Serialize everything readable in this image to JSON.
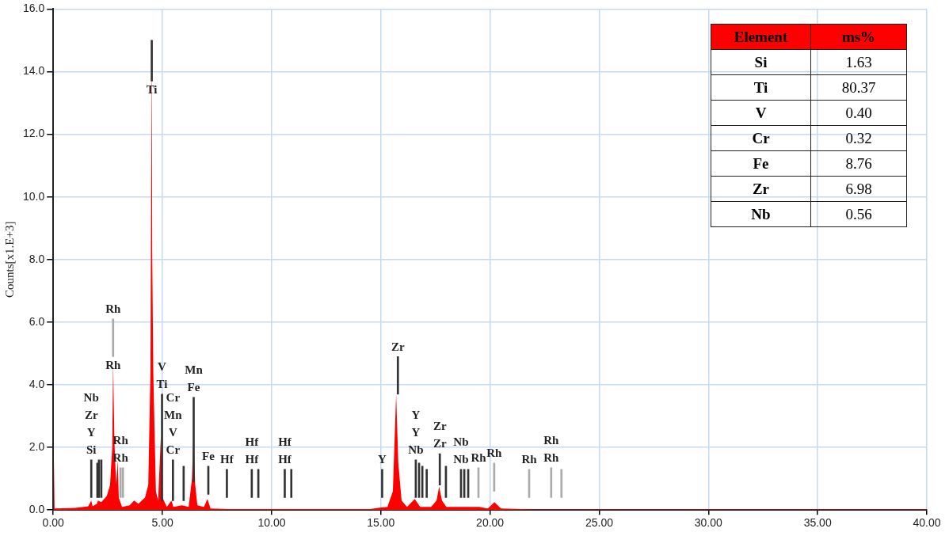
{
  "chart_data": [
    {
      "type": "area",
      "ylabel": "Counts[x1.E+3]",
      "xlim": [
        0,
        40
      ],
      "ylim": [
        0,
        16
      ],
      "xticks": [
        {
          "value": 0,
          "label": "0.00"
        },
        {
          "value": 5,
          "label": "5.00"
        },
        {
          "value": 10,
          "label": "10.00"
        },
        {
          "value": 15,
          "label": "15.00"
        },
        {
          "value": 20,
          "label": "20.00"
        },
        {
          "value": 25,
          "label": "25.00"
        },
        {
          "value": 30,
          "label": "30.00"
        },
        {
          "value": 35,
          "label": "35.00"
        },
        {
          "value": 40,
          "label": "40.00"
        }
      ],
      "yticks": [
        {
          "value": 0,
          "label": "0.0"
        },
        {
          "value": 2,
          "label": "2.0"
        },
        {
          "value": 4,
          "label": "4.0"
        },
        {
          "value": 6,
          "label": "6.0"
        },
        {
          "value": 8,
          "label": "8.0"
        },
        {
          "value": 10,
          "label": "10.0"
        },
        {
          "value": 12,
          "label": "12.0"
        },
        {
          "value": 14,
          "label": "14.0"
        },
        {
          "value": 16,
          "label": "16.0"
        }
      ],
      "grid": true,
      "legend": false,
      "series": [
        {
          "type": "area",
          "color": "#ff0000",
          "x": [
            0,
            0.02,
            0.06,
            1.0,
            1.6,
            1.74,
            1.8,
            2.0,
            2.05,
            2.2,
            2.45,
            2.6,
            2.7,
            2.74,
            2.8,
            2.88,
            2.95,
            3.0,
            3.15,
            3.5,
            3.7,
            3.9,
            4.2,
            4.35,
            4.45,
            4.51,
            4.53,
            4.58,
            4.7,
            4.8,
            4.93,
            5.0,
            5.2,
            5.41,
            5.5,
            5.9,
            6.2,
            6.35,
            6.42,
            6.5,
            6.6,
            6.9,
            7.06,
            7.2,
            8.0,
            14.5,
            15.0,
            15.3,
            15.55,
            15.7,
            15.8,
            15.95,
            16.2,
            16.55,
            16.8,
            17.3,
            17.55,
            17.67,
            17.8,
            18.0,
            19.5,
            19.9,
            20.2,
            20.5,
            22,
            40
          ],
          "values": [
            0,
            2.0,
            0.05,
            0.07,
            0.12,
            0.3,
            0.12,
            0.2,
            0.3,
            0.25,
            0.45,
            0.8,
            2.0,
            4.7,
            2.2,
            0.8,
            1.6,
            0.4,
            0.1,
            0.15,
            0.3,
            0.2,
            0.4,
            0.8,
            4.4,
            15.0,
            8.3,
            4.4,
            0.6,
            0.3,
            2.4,
            0.4,
            0.1,
            0.3,
            0.1,
            0.15,
            0.1,
            1.0,
            2.35,
            0.8,
            0.15,
            0.1,
            0.35,
            0.05,
            0.03,
            0.03,
            0.08,
            0.1,
            0.6,
            3.7,
            1.5,
            0.3,
            0.1,
            0.35,
            0.1,
            0.1,
            0.3,
            0.75,
            0.3,
            0.1,
            0.1,
            0.05,
            0.25,
            0.05,
            0.02,
            0.02
          ]
        },
        {
          "type": "bar",
          "x": [
            1.74,
            2.02,
            2.09,
            2.2,
            2.74,
            3.08,
            3.19,
            4.51,
            4.98,
            5.48,
            5.97,
            6.43,
            7.1,
            7.95,
            9.09,
            9.39,
            10.6,
            10.9,
            15.06,
            15.78,
            16.6,
            16.75,
            16.9,
            17.1,
            17.7,
            17.98,
            18.67,
            18.82,
            19.0,
            19.47,
            20.19,
            21.79,
            22.8,
            23.27
          ],
          "base": [
            0.4,
            0.4,
            0.4,
            0.4,
            4.9,
            0.4,
            0.4,
            13.7,
            0.3,
            0.3,
            0.3,
            0.9,
            0.5,
            0.4,
            0.4,
            0.4,
            0.4,
            0.4,
            0.4,
            3.7,
            0.4,
            0.4,
            0.4,
            0.4,
            0.8,
            0.4,
            0.4,
            0.4,
            0.4,
            0.4,
            0.6,
            0.4,
            0.4,
            0.4
          ],
          "values": [
            1.2,
            1.1,
            1.2,
            1.2,
            1.2,
            0.95,
            0.95,
            1.3,
            3.4,
            1.3,
            1.1,
            2.7,
            0.9,
            0.9,
            0.9,
            0.9,
            0.9,
            0.9,
            0.9,
            1.2,
            1.2,
            1.1,
            1.0,
            0.9,
            1.0,
            1.0,
            0.9,
            0.9,
            0.9,
            0.95,
            0.9,
            0.9,
            0.95,
            0.9
          ],
          "colors": [
            "#333333",
            "#333333",
            "#333333",
            "#333333",
            "#aaaaaa",
            "#aaaaaa",
            "#aaaaaa",
            "#333333",
            "#333333",
            "#333333",
            "#333333",
            "#333333",
            "#333333",
            "#333333",
            "#333333",
            "#333333",
            "#333333",
            "#333333",
            "#333333",
            "#333333",
            "#333333",
            "#333333",
            "#333333",
            "#333333",
            "#333333",
            "#333333",
            "#333333",
            "#333333",
            "#333333",
            "#aaaaaa",
            "#aaaaaa",
            "#aaaaaa",
            "#aaaaaa",
            "#aaaaaa"
          ]
        }
      ],
      "annotations": [
        {
          "text": "Ti",
          "x": 4.51,
          "y": 13.7
        },
        {
          "text": "Rh",
          "x": 2.74,
          "y": 6.1
        },
        {
          "text": "Rh",
          "x": 2.74,
          "y": 4.9
        },
        {
          "text": "Si",
          "x": 1.74,
          "y": 1.6
        },
        {
          "text": "Y",
          "x": 1.74,
          "y": 1.6
        },
        "Zr",
        "Nb",
        {
          "text": "Rh",
          "x": 3.08,
          "y": 1.35
        },
        {
          "text": "Rh",
          "x": 3.08,
          "y": 1.35
        },
        {
          "text": "Ti",
          "x": 4.98,
          "y": 3.7
        },
        {
          "text": "V",
          "x": 4.98,
          "y": 3.7
        },
        {
          "text": "Cr",
          "x": 5.48,
          "y": 1.6
        },
        {
          "text": "V",
          "x": 5.48,
          "y": 1.6
        },
        "Mn",
        "Cr",
        {
          "text": "Fe",
          "x": 6.43,
          "y": 3.6
        },
        {
          "text": "Mn",
          "x": 6.43,
          "y": 3.6
        },
        {
          "text": "Fe",
          "x": 7.1,
          "y": 1.4
        },
        {
          "text": "Hf",
          "x": 7.95,
          "y": 1.3
        },
        {
          "text": "Hf",
          "x": 9.09,
          "y": 1.3
        },
        {
          "text": "Hf",
          "x": 9.09,
          "y": 1.3
        },
        {
          "text": "Hf",
          "x": 10.6,
          "y": 1.3
        },
        {
          "text": "Hf",
          "x": 10.6,
          "y": 1.3
        },
        {
          "text": "Y",
          "x": 15.06,
          "y": 1.3
        },
        {
          "text": "Zr",
          "x": 15.78,
          "y": 4.9
        },
        {
          "text": "Nb",
          "x": 16.6,
          "y": 1.6
        },
        {
          "text": "Y",
          "x": 16.6,
          "y": 1.6
        },
        "Y",
        {
          "text": "Zr",
          "x": 17.7,
          "y": 1.8
        },
        {
          "text": "Zr",
          "x": 17.7,
          "y": 1.8
        },
        {
          "text": "Nb",
          "x": 18.67,
          "y": 1.3
        },
        {
          "text": "Nb",
          "x": 18.67,
          "y": 1.3
        },
        {
          "text": "Rh",
          "x": 19.47,
          "y": 1.35
        },
        {
          "text": "Rh",
          "x": 20.19,
          "y": 1.5
        },
        {
          "text": "Rh",
          "x": 21.79,
          "y": 1.3
        },
        {
          "text": "Rh",
          "x": 22.8,
          "y": 1.35
        },
        {
          "text": "Rh",
          "x": 22.8,
          "y": 1.35
        }
      ]
    },
    {
      "type": "other",
      "annotations": [
        "Element",
        "ms%",
        "Si",
        "1.63",
        "Ti",
        "80.37",
        "V",
        "0.40",
        "Cr",
        "0.32",
        "Fe",
        "8.76",
        "Zr",
        "6.98",
        "Nb",
        "0.56"
      ]
    }
  ]
}
